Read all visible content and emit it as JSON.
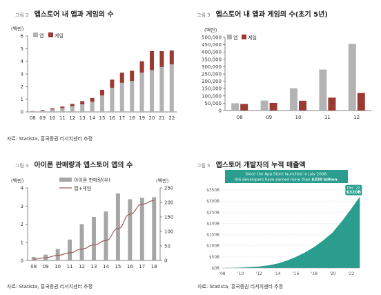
{
  "fig2": {
    "num": "그림 2",
    "title": "앱스토어 내 앱과 게임의 수",
    "source": "자료: Statista, 흥국증권 리서치센터 추정",
    "chart_data": {
      "type": "bar",
      "stacked": true,
      "unit": "(백만)",
      "categories": [
        "08",
        "09",
        "10",
        "11",
        "12",
        "13",
        "14",
        "15",
        "16",
        "17",
        "18",
        "19",
        "20",
        "21",
        "22"
      ],
      "ylim": [
        0,
        6
      ],
      "yticks": [
        0,
        1,
        2,
        3,
        4,
        5,
        6
      ],
      "series": [
        {
          "name": "앱",
          "color": "#b3b3b3",
          "values": [
            0.05,
            0.1,
            0.2,
            0.3,
            0.45,
            0.6,
            0.8,
            1.3,
            1.9,
            2.3,
            2.45,
            3.1,
            3.3,
            3.55,
            3.75
          ]
        },
        {
          "name": "게임",
          "color": "#9b3a32",
          "values": [
            0.02,
            0.05,
            0.08,
            0.12,
            0.18,
            0.25,
            0.3,
            0.45,
            0.65,
            0.8,
            0.8,
            0.9,
            1.5,
            1.25,
            1.1
          ]
        }
      ],
      "legend_position": "top-left"
    }
  },
  "fig3": {
    "num": "그림 3",
    "title": "앱스토어 내 앱과 게임의 수(초기 5년)",
    "source": "",
    "chart_data": {
      "type": "bar",
      "grouped": true,
      "unit": "(백만)",
      "categories": [
        "08",
        "09",
        "10",
        "11",
        "12"
      ],
      "ylim": [
        0,
        500000
      ],
      "yticks": [
        0,
        50000,
        100000,
        150000,
        200000,
        250000,
        300000,
        350000,
        400000,
        450000,
        500000
      ],
      "ytick_labels": [
        "0",
        "50,000",
        "100,000",
        "150,000",
        "200,000",
        "250,000",
        "300,000",
        "350,000",
        "400,000",
        "450,000",
        "500,000"
      ],
      "series": [
        {
          "name": "앱",
          "color": "#b3b3b3",
          "values": [
            50000,
            68000,
            152000,
            280000,
            455000
          ]
        },
        {
          "name": "게임",
          "color": "#9b3a32",
          "values": [
            45000,
            52000,
            67000,
            88000,
            120000
          ]
        }
      ],
      "legend_position": "top-left"
    }
  },
  "fig4": {
    "num": "그림 4",
    "title": "아이폰 판매량과 앱스토어 앱의 수",
    "source": "자료: Statista, 흥국증권 리서치센터 추정",
    "chart_data": {
      "type": "bar+line",
      "left_unit": "(백만)",
      "right_unit": "(백만)",
      "categories": [
        "08",
        "09",
        "10",
        "11",
        "12",
        "13",
        "14",
        "15",
        "16",
        "17",
        "18"
      ],
      "ylim_left": [
        0,
        4
      ],
      "yticks_left": [
        0,
        1,
        2,
        3,
        4
      ],
      "ylim_right": [
        0,
        250
      ],
      "yticks_right": [
        0,
        50,
        100,
        150,
        200,
        250
      ],
      "bars": {
        "name": "아이폰 판매량(우)",
        "color": "#a6a6a6",
        "axis": "right",
        "values": [
          12,
          20,
          40,
          72,
          125,
          150,
          169,
          231,
          211,
          216,
          218
        ]
      },
      "line": {
        "name": "앱+게임",
        "color": "#9b5a5a",
        "axis": "left",
        "values": [
          0.07,
          0.15,
          0.28,
          0.42,
          0.63,
          0.85,
          1.1,
          1.75,
          2.55,
          3.1,
          3.3
        ]
      },
      "legend_position": "top-center"
    }
  },
  "fig5": {
    "num": "그림 5",
    "title": "앱스토어 개발자의 누적 매출액",
    "source": "자료: Statista, 흥국증권 리서치센터 추정",
    "chart_data": {
      "type": "area",
      "color": "#2a9d8f",
      "x_labels": [
        "'08",
        "'10",
        "'12",
        "'14",
        "'16",
        "'18",
        "'20",
        "'22"
      ],
      "xlim": [
        2008,
        2023
      ],
      "ylim": [
        0,
        350
      ],
      "yticks": [
        0,
        50,
        100,
        150,
        200,
        250,
        300,
        350
      ],
      "ytick_labels": [
        "$0B",
        "$50B",
        "$100B",
        "$150B",
        "$200B",
        "$250B",
        "$300B",
        "$350B"
      ],
      "x": [
        2008,
        2009,
        2010,
        2011,
        2012,
        2013,
        2014,
        2015,
        2016,
        2017,
        2018,
        2019,
        2020,
        2021,
        2022,
        2022.95
      ],
      "y": [
        0,
        1,
        2.5,
        4.5,
        7,
        12,
        20,
        33,
        50,
        70,
        95,
        125,
        160,
        210,
        265,
        320
      ],
      "banner_line1": "Since the App Store launched in July 2008,",
      "banner_line2_pre": "iOS developers have earned more than ",
      "banner_line2_bold": "$320 billion",
      "banner_line2_post": ".",
      "callout_date": "Dec '22",
      "callout_value": "$320B"
    }
  }
}
